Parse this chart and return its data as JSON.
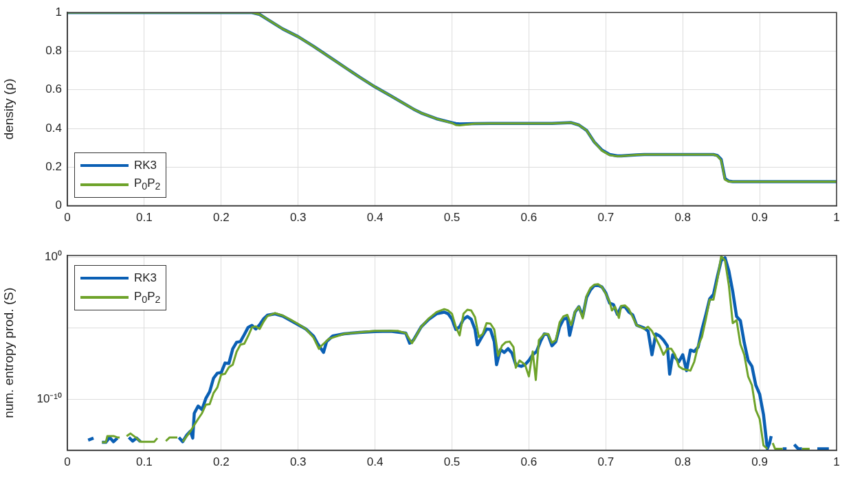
{
  "chart_data": [
    {
      "type": "line",
      "ylabel": "density (ρ)",
      "xlim": [
        0,
        1
      ],
      "xticks": [
        0,
        0.1,
        0.2,
        0.3,
        0.4,
        0.5,
        0.6,
        0.7,
        0.8,
        0.9,
        1
      ],
      "ylim": [
        0,
        1
      ],
      "yticks": [
        0,
        0.2,
        0.4,
        0.6,
        0.8,
        1
      ],
      "grid": true,
      "legend": "bottom left",
      "marker": "none",
      "line_style": "solid",
      "x": [
        0,
        0.1,
        0.2,
        0.23,
        0.24,
        0.25,
        0.26,
        0.27,
        0.28,
        0.3,
        0.32,
        0.35,
        0.38,
        0.4,
        0.42,
        0.45,
        0.46,
        0.48,
        0.5,
        0.505,
        0.51,
        0.53,
        0.55,
        0.6,
        0.63,
        0.655,
        0.665,
        0.675,
        0.685,
        0.695,
        0.705,
        0.715,
        0.72,
        0.74,
        0.75,
        0.84,
        0.845,
        0.85,
        0.855,
        0.86,
        0.865,
        0.9,
        1
      ],
      "series": [
        {
          "name": "RK3",
          "color": "#0a5fb4",
          "values": [
            1,
            1,
            1,
            1,
            1,
            0.99,
            0.965,
            0.94,
            0.915,
            0.875,
            0.825,
            0.745,
            0.665,
            0.615,
            0.57,
            0.5,
            0.48,
            0.45,
            0.43,
            0.425,
            0.423,
            0.425,
            0.426,
            0.426,
            0.426,
            0.43,
            0.418,
            0.39,
            0.33,
            0.288,
            0.265,
            0.258,
            0.258,
            0.263,
            0.265,
            0.265,
            0.26,
            0.24,
            0.14,
            0.127,
            0.125,
            0.125,
            0.125
          ]
        },
        {
          "name": "P$_{0}$P$_{2}$",
          "color": "#6ea32a",
          "values": [
            1,
            1,
            1,
            1,
            1,
            0.99,
            0.965,
            0.94,
            0.915,
            0.875,
            0.825,
            0.745,
            0.665,
            0.615,
            0.57,
            0.5,
            0.48,
            0.45,
            0.428,
            0.418,
            0.416,
            0.425,
            0.426,
            0.426,
            0.426,
            0.43,
            0.418,
            0.39,
            0.33,
            0.285,
            0.262,
            0.256,
            0.257,
            0.263,
            0.265,
            0.265,
            0.258,
            0.235,
            0.135,
            0.125,
            0.125,
            0.125,
            0.125
          ]
        }
      ]
    },
    {
      "type": "line",
      "ylabel": "num. entropy prod. (S)",
      "log": "y",
      "xlim": [
        0,
        1
      ],
      "xticks": [
        0,
        0.1,
        0.2,
        0.3,
        0.4,
        0.5,
        0.6,
        0.7,
        0.8,
        0.9,
        1
      ],
      "ylim": [
        2.5e-14,
        1.25
      ],
      "yticks": [
        {
          "value": 1,
          "label": "10⁰"
        },
        {
          "value": 1e-05,
          "label": null
        },
        {
          "value": 1e-10,
          "label": "10⁻¹⁰"
        }
      ],
      "grid": true,
      "legend": "top left",
      "marker": "none",
      "line_style": "solid",
      "series": [
        {
          "name": "RK3",
          "color": "#0a5fb4",
          "x": [
            0.027,
            0.034,
            0.036,
            0.045,
            0.05,
            0.055,
            0.06,
            0.065,
            0.072,
            0.08,
            0.085,
            0.09,
            0.095,
            0.1,
            0.14,
            0.145,
            0.15,
            0.155,
            0.16,
            0.163,
            0.165,
            0.17,
            0.175,
            0.18,
            0.185,
            0.19,
            0.195,
            0.2,
            0.205,
            0.21,
            0.215,
            0.22,
            0.225,
            0.23,
            0.235,
            0.24,
            0.245,
            0.25,
            0.255,
            0.26,
            0.27,
            0.28,
            0.29,
            0.3,
            0.31,
            0.32,
            0.325,
            0.33,
            0.333,
            0.337,
            0.345,
            0.36,
            0.38,
            0.4,
            0.42,
            0.44,
            0.445,
            0.45,
            0.46,
            0.47,
            0.48,
            0.49,
            0.495,
            0.5,
            0.505,
            0.51,
            0.515,
            0.52,
            0.525,
            0.53,
            0.533,
            0.54,
            0.545,
            0.55,
            0.555,
            0.558,
            0.563,
            0.568,
            0.573,
            0.578,
            0.583,
            0.59,
            0.595,
            0.6,
            0.605,
            0.61,
            0.615,
            0.62,
            0.625,
            0.63,
            0.635,
            0.64,
            0.645,
            0.65,
            0.653,
            0.66,
            0.665,
            0.67,
            0.675,
            0.68,
            0.685,
            0.69,
            0.695,
            0.7,
            0.705,
            0.71,
            0.715,
            0.72,
            0.725,
            0.73,
            0.735,
            0.74,
            0.75,
            0.755,
            0.76,
            0.765,
            0.77,
            0.775,
            0.78,
            0.783,
            0.787,
            0.79,
            0.795,
            0.8,
            0.805,
            0.81,
            0.815,
            0.82,
            0.825,
            0.83,
            0.835,
            0.84,
            0.845,
            0.85,
            0.855,
            0.86,
            0.865,
            0.87,
            0.875,
            0.88,
            0.885,
            0.89,
            0.895,
            0.9,
            0.905,
            0.91,
            0.913,
            0.915,
            0.92,
            0.93,
            0.935,
            0.94,
            0.945,
            0.95,
            0.955,
            0.96,
            0.975,
            0.99
          ],
          "values": [
            1.3e-13,
            1.8e-13,
            null,
            9e-14,
            9e-14,
            2e-13,
            1e-13,
            1.8e-13,
            null,
            2e-13,
            1.1e-13,
            1.8e-13,
            1e-13,
            null,
            null,
            2e-13,
            1e-13,
            2.8e-13,
            5.5e-13,
            1.8e-13,
            1e-11,
            3.2e-11,
            1.8e-11,
            1.1e-10,
            3.3e-10,
            2.9e-09,
            6.6e-09,
            7.2e-09,
            3.4e-08,
            3.2e-08,
            3.4e-07,
            9.8e-07,
            1.1e-06,
            3.4e-06,
            1.1e-05,
            1.5e-05,
            8.5e-06,
            1.7e-05,
            4.3e-05,
            7.8e-05,
            9.8e-05,
            6.8e-05,
            3.4e-05,
            1.7e-05,
            8.5e-06,
            2.7e-06,
            8.5e-07,
            3.4e-07,
            1.9e-07,
            1.1e-06,
            2.7e-06,
            3.9e-06,
            4.9e-06,
            5.6e-06,
            5.9e-06,
            4.3e-06,
            8.5e-07,
            1.4e-06,
            1.2e-05,
            4.1e-05,
            0.0001,
            0.00013,
            0.0001,
            4.1e-05,
            7.8e-06,
            1.2e-05,
            4.1e-05,
            6.5e-05,
            4.1e-05,
            7.8e-06,
            6.5e-07,
            3e-06,
            8.5e-06,
            7.8e-06,
            1.1e-06,
            2.6e-08,
            3e-07,
            1.9e-07,
            3.5e-07,
            1.7e-07,
            2.6e-08,
            2e-08,
            2.6e-08,
            5.2e-08,
            1.3e-07,
            2.2e-07,
            1.1e-06,
            3.8e-06,
            3.3e-06,
            5.6e-07,
            1.1e-06,
            1.2e-05,
            4.1e-05,
            5.1e-05,
            3e-06,
            0.00013,
            0.00031,
            6.5e-05,
            0.0014,
            0.0047,
            0.0095,
            0.01,
            0.0076,
            0.0029,
            0.00055,
            0.00044,
            9.1e-05,
            0.00031,
            0.00031,
            0.00013,
            8.3e-05,
            1.6e-05,
            9.8e-06,
            6e-06,
            1.3e-07,
            3.8e-06,
            2.7e-06,
            1.4e-06,
            5.6e-07,
            5.6e-09,
            1.3e-07,
            8.5e-08,
            4.2e-08,
            1.3e-07,
            1e-08,
            2.8e-07,
            2.2e-07,
            4.5e-07,
            7.8e-06,
            8.3e-05,
            0.0011,
            0.0023,
            0.04,
            0.54,
            0.87,
            0.1,
            0.0037,
            6.5e-05,
            3.2e-05,
            9.1e-07,
            5.2e-08,
            2e-08,
            9.3e-10,
            2.2e-10,
            8.1e-12,
            3.2e-14,
            8e-14,
            2.5e-13,
            null,
            3.2e-14,
            3.2e-14,
            null,
            6.3e-14,
            3.2e-14,
            3.2e-14,
            null,
            3.2e-14,
            3.2e-14
          ]
        },
        {
          "name": "P$_{0}$P$_{2}$",
          "color": "#6ea32a",
          "x": [
            0.045,
            0.05,
            0.052,
            0.06,
            0.065,
            0.068,
            0.072,
            0.077,
            0.082,
            0.09,
            0.095,
            0.113,
            0.117,
            0.122,
            0.128,
            0.133,
            0.143,
            0.147,
            0.15,
            0.16,
            0.17,
            0.175,
            0.18,
            0.185,
            0.19,
            0.195,
            0.2,
            0.205,
            0.21,
            0.215,
            0.22,
            0.225,
            0.23,
            0.235,
            0.24,
            0.245,
            0.25,
            0.255,
            0.26,
            0.27,
            0.28,
            0.29,
            0.3,
            0.31,
            0.32,
            0.327,
            0.33,
            0.34,
            0.36,
            0.4,
            0.43,
            0.44,
            0.448,
            0.455,
            0.46,
            0.47,
            0.48,
            0.49,
            0.495,
            0.5,
            0.505,
            0.51,
            0.515,
            0.52,
            0.525,
            0.53,
            0.535,
            0.54,
            0.545,
            0.55,
            0.555,
            0.56,
            0.565,
            0.57,
            0.575,
            0.58,
            0.583,
            0.588,
            0.595,
            0.6,
            0.605,
            0.609,
            0.613,
            0.62,
            0.625,
            0.63,
            0.635,
            0.64,
            0.645,
            0.65,
            0.655,
            0.66,
            0.665,
            0.67,
            0.675,
            0.68,
            0.685,
            0.69,
            0.695,
            0.7,
            0.705,
            0.708,
            0.712,
            0.717,
            0.72,
            0.725,
            0.73,
            0.74,
            0.75,
            0.755,
            0.76,
            0.765,
            0.77,
            0.775,
            0.78,
            0.785,
            0.79,
            0.795,
            0.8,
            0.81,
            0.815,
            0.82,
            0.825,
            0.83,
            0.835,
            0.84,
            0.845,
            0.85,
            0.855,
            0.86,
            0.865,
            0.87,
            0.875,
            0.88,
            0.885,
            0.89,
            0.895,
            0.9,
            0.905,
            0.91,
            0.913,
            0.917,
            0.92,
            0.93,
            0.94,
            0.955,
            0.965
          ],
          "values": [
            9e-14,
            9e-14,
            2.5e-13,
            2.5e-13,
            2e-13,
            2e-13,
            null,
            2.5e-13,
            3.8e-13,
            1.8e-13,
            1e-13,
            1e-13,
            1.8e-13,
            null,
            1.1e-13,
            2e-13,
            2e-13,
            null,
            1e-13,
            5.5e-13,
            4e-12,
            1e-11,
            4e-11,
            4.4e-11,
            2.6e-10,
            6.6e-10,
            5.2e-09,
            6e-09,
            1.7e-08,
            2.6e-08,
            2.1e-07,
            6.8e-07,
            7.8e-07,
            2.7e-06,
            1.1e-05,
            1.3e-05,
            8.5e-06,
            2.7e-05,
            6.8e-05,
            0.00011,
            7.4e-05,
            3.9e-05,
            1.9e-05,
            8.5e-06,
            2.1e-06,
            3.4e-07,
            5.4e-07,
            1.7e-06,
            3.9e-06,
            6.2e-06,
            6.2e-06,
            4.3e-06,
            8.5e-07,
            4e-06,
            1.2e-05,
            4.7e-05,
            0.00013,
            0.00021,
            0.00017,
            0.0001,
            1.2e-05,
            3e-06,
            0.0001,
            0.00019,
            0.00017,
            5.6e-05,
            2.3e-06,
            3.8e-06,
            2.2e-05,
            2e-05,
            7.8e-06,
            1.1e-07,
            5.6e-07,
            1e-06,
            1.1e-06,
            4.5e-07,
            1.6e-08,
            5.2e-08,
            2.6e-08,
            3.9e-09,
            2.2e-07,
            2.2e-09,
            1.4e-06,
            3.8e-06,
            3.8e-06,
            9.1e-07,
            1.4e-06,
            2.5e-05,
            6.5e-05,
            8.3e-05,
            1.6e-05,
            0.00014,
            0.00031,
            4.7e-05,
            0.0018,
            0.0065,
            0.011,
            0.012,
            0.0076,
            0.0025,
            0.00069,
            0.00017,
            0.00031,
            5.1e-05,
            0.00035,
            0.00038,
            0.00021,
            1.6e-05,
            8.5e-06,
            1.2e-05,
            6e-06,
            1.9e-06,
            5.6e-07,
            1.3e-07,
            3.5e-07,
            3.5e-07,
            1.3e-07,
            2e-08,
            1.3e-08,
            1e-08,
            4.2e-08,
            5.6e-07,
            2.3e-06,
            4.1e-05,
            0.00098,
            0.00098,
            0.025,
            1.12,
            0.54,
            0.0095,
            2.2e-05,
            3.5e-05,
            7.2e-07,
            1.3e-07,
            3.9e-09,
            9.3e-10,
            1.7e-11,
            4e-12,
            5.5e-14,
            3.2e-14,
            null,
            8e-14,
            3.2e-14,
            3.2e-14,
            null,
            3.2e-14,
            3.2e-14
          ]
        }
      ]
    }
  ]
}
